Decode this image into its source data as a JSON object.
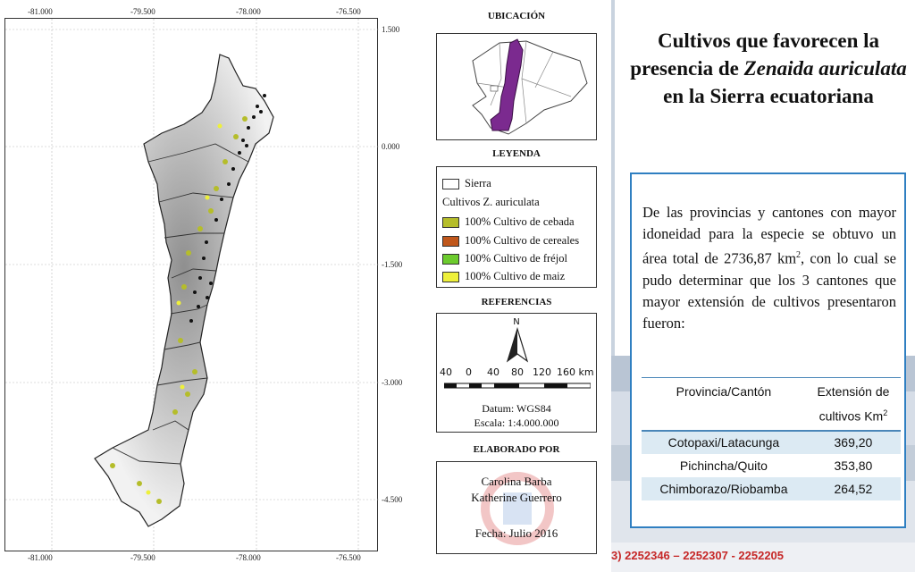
{
  "map": {
    "x_ticks": [
      "-81.000",
      "-79.500",
      "-78.000",
      "-76.500"
    ],
    "y_ticks": [
      "1.500",
      "0.000",
      "-1.500",
      "-3.000",
      "-4.500"
    ]
  },
  "location": {
    "title": "UBICACIÓN"
  },
  "legend": {
    "title": "LEYENDA",
    "sierra_label": "Sierra",
    "crops_label": "Cultivos Z. auriculata",
    "items": [
      {
        "label": "100% Cultivo de cebada",
        "color": "#b5bd2a"
      },
      {
        "label": "100% Cultivo de cereales",
        "color": "#c0571b"
      },
      {
        "label": "100% Cultivo de fréjol",
        "color": "#6ccb2d"
      },
      {
        "label": "100% Cultivo de maiz",
        "color": "#eef03a"
      }
    ]
  },
  "references": {
    "title": "REFERENCIAS",
    "north": "N",
    "scale_numbers": [
      "40",
      "0",
      "40",
      "80",
      "120",
      "160 km"
    ],
    "datum": "Datum: WGS84",
    "scale": "Escala: 1:4.000.000"
  },
  "credits": {
    "title": "ELABORADO POR",
    "author1": "Carolina Barba",
    "author2": "Katherine Guerrero",
    "date": "Fecha: Julio 2016"
  },
  "slide": {
    "title_part1": "Cultivos que favorecen la presencia de ",
    "title_italic": "Zenaida auriculata",
    "title_part2": " en la Sierra ecuatoriana",
    "body_part1": "De las provincias y cantones con mayor idoneidad para la especie se obtuvo un área total de 2736,87 km",
    "body_sup": "2",
    "body_part2": ", con lo cual se pudo determinar que los 3 cantones que mayor extensión de cultivos presentaron fueron:",
    "table": {
      "col1": "Provincia/Cantón",
      "col2_line1": "Extensión de",
      "col2_line2": "cultivos Km",
      "col2_sup": "2",
      "rows": [
        {
          "place": "Cotopaxi/Latacunga",
          "value": "369,20"
        },
        {
          "place": "Pichincha/Quito",
          "value": "353,80"
        },
        {
          "place": "Chimborazo/Riobamba",
          "value": "264,52"
        }
      ]
    },
    "footer_phone": "3) 2252346 – 2252307 - 2252205"
  },
  "colors": {
    "accent_blue": "#2f7fc1",
    "table_stripe": "#dceaf3",
    "phone_red": "#c62828",
    "purple": "#7b2a8f"
  }
}
